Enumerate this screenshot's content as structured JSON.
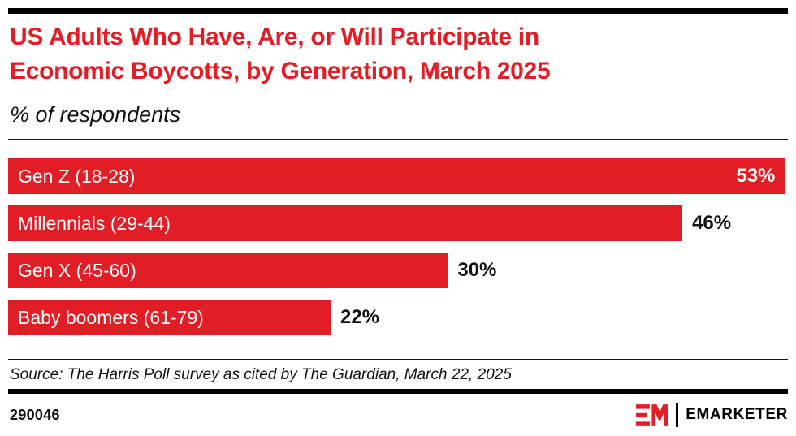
{
  "header": {
    "title_line1": "US Adults Who Have, Are, or Will Participate in",
    "title_line2": "Economic Boycotts, by Generation, March 2025",
    "subtitle": "% of respondents"
  },
  "chart_data": {
    "type": "bar",
    "orientation": "horizontal",
    "title": "US Adults Who Have, Are, or Will Participate in Economic Boycotts, by Generation, March 2025",
    "subtitle": "% of respondents",
    "categories": [
      "Gen Z (18-28)",
      "Millennials (29-44)",
      "Gen X (45-60)",
      "Baby boomers (61-79)"
    ],
    "values": [
      53,
      46,
      30,
      22
    ],
    "value_labels": [
      "53%",
      "46%",
      "30%",
      "22%"
    ],
    "unit": "%",
    "xlim": [
      0,
      53.2
    ],
    "bar_color": "#e11e26",
    "category_label_color": "#ffffff",
    "value_label_color_inside": "#ffffff",
    "value_label_color_outside": "#111111",
    "grid": false,
    "legend": false,
    "value_label_position_note": "largest bar labeled inside right edge, others outside right of bar"
  },
  "footer": {
    "source": "Source: The Harris Poll survey as cited by The Guardian, March 22, 2025",
    "chart_id": "290046",
    "brand": "EMARKETER"
  },
  "colors": {
    "accent_red": "#e11e26",
    "text_black": "#111111",
    "background": "#ffffff"
  }
}
